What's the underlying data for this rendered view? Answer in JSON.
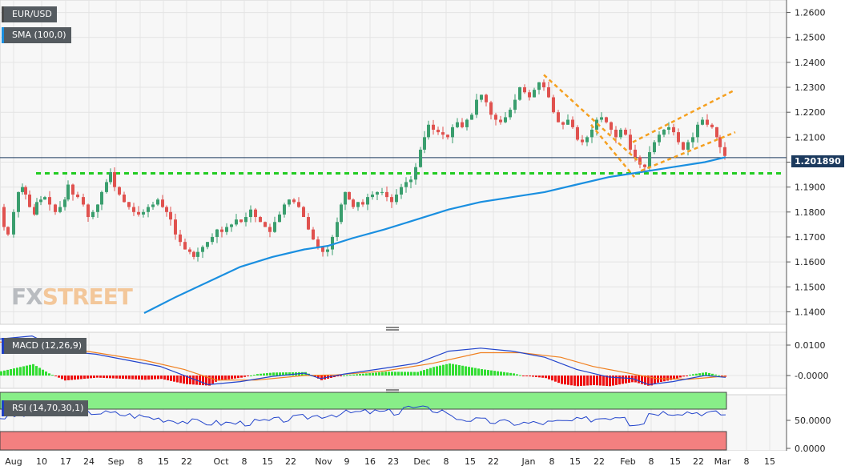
{
  "chart_data": {
    "type": "candlestick",
    "symbol": "EUR/USD",
    "indicator_sma": "SMA (100,0)",
    "indicator_macd": "MACD (12,26,9)",
    "indicator_rsi": "RSI (14,70,30,1)",
    "last_price": "1.201890",
    "price_axis": {
      "ylim": [
        1.135,
        1.265
      ],
      "ticks": [
        "1.2600",
        "1.2500",
        "1.2400",
        "1.2300",
        "1.2200",
        "1.2100",
        "1.2000",
        "1.1900",
        "1.1800",
        "1.1700",
        "1.1600",
        "1.1500",
        "1.1400"
      ]
    },
    "macd_axis": {
      "ticks": [
        "0.0100",
        "-0.0000"
      ]
    },
    "rsi_axis": {
      "ticks": [
        "50.0000",
        "0.0000"
      ]
    },
    "x_ticks": [
      "Aug",
      "10",
      "17",
      "24",
      "Sep",
      "8",
      "15",
      "22",
      "Oct",
      "8",
      "15",
      "22",
      "Nov",
      "9",
      "16",
      "23",
      "Dec",
      "8",
      "15",
      "22",
      "Jan",
      "8",
      "15",
      "22",
      "Feb",
      "8",
      "15",
      "22",
      "Mar",
      "8",
      "15"
    ],
    "support_level": 1.1955,
    "resistance_level": 1.2018,
    "price_path": [
      [
        0,
        1.182
      ],
      [
        6,
        1.174
      ],
      [
        11,
        1.171
      ],
      [
        18,
        1.18
      ],
      [
        24,
        1.188
      ],
      [
        29,
        1.19
      ],
      [
        33,
        1.187
      ],
      [
        38,
        1.182
      ],
      [
        44,
        1.179
      ],
      [
        47,
        1.184
      ],
      [
        52,
        1.185
      ],
      [
        57,
        1.186
      ],
      [
        63,
        1.183
      ],
      [
        70,
        1.18
      ],
      [
        76,
        1.182
      ],
      [
        82,
        1.185
      ],
      [
        86,
        1.191
      ],
      [
        92,
        1.187
      ],
      [
        98,
        1.186
      ],
      [
        105,
        1.183
      ],
      [
        111,
        1.178
      ],
      [
        117,
        1.18
      ],
      [
        123,
        1.183
      ],
      [
        128,
        1.188
      ],
      [
        134,
        1.192
      ],
      [
        139,
        1.196
      ],
      [
        144,
        1.19
      ],
      [
        150,
        1.187
      ],
      [
        156,
        1.184
      ],
      [
        162,
        1.182
      ],
      [
        168,
        1.18
      ],
      [
        174,
        1.179
      ],
      [
        180,
        1.18
      ],
      [
        186,
        1.182
      ],
      [
        192,
        1.183
      ],
      [
        198,
        1.185
      ],
      [
        204,
        1.182
      ],
      [
        209,
        1.18
      ],
      [
        214,
        1.177
      ],
      [
        220,
        1.171
      ],
      [
        226,
        1.168
      ],
      [
        232,
        1.165
      ],
      [
        238,
        1.164
      ],
      [
        243,
        1.162
      ],
      [
        248,
        1.164
      ],
      [
        254,
        1.166
      ],
      [
        260,
        1.168
      ],
      [
        266,
        1.17
      ],
      [
        272,
        1.173
      ],
      [
        278,
        1.172
      ],
      [
        284,
        1.174
      ],
      [
        290,
        1.175
      ],
      [
        296,
        1.177
      ],
      [
        302,
        1.176
      ],
      [
        308,
        1.178
      ],
      [
        314,
        1.181
      ],
      [
        320,
        1.178
      ],
      [
        326,
        1.176
      ],
      [
        332,
        1.174
      ],
      [
        338,
        1.172
      ],
      [
        344,
        1.176
      ],
      [
        350,
        1.179
      ],
      [
        356,
        1.183
      ],
      [
        362,
        1.185
      ],
      [
        368,
        1.184
      ],
      [
        374,
        1.182
      ],
      [
        380,
        1.178
      ],
      [
        386,
        1.173
      ],
      [
        392,
        1.169
      ],
      [
        398,
        1.166
      ],
      [
        404,
        1.164
      ],
      [
        410,
        1.165
      ],
      [
        416,
        1.17
      ],
      [
        422,
        1.176
      ],
      [
        427,
        1.183
      ],
      [
        432,
        1.188
      ],
      [
        437,
        1.185
      ],
      [
        442,
        1.182
      ],
      [
        448,
        1.184
      ],
      [
        454,
        1.183
      ],
      [
        460,
        1.186
      ],
      [
        466,
        1.187
      ],
      [
        472,
        1.188
      ],
      [
        478,
        1.188
      ],
      [
        484,
        1.186
      ],
      [
        490,
        1.184
      ],
      [
        496,
        1.187
      ],
      [
        502,
        1.19
      ],
      [
        508,
        1.192
      ],
      [
        514,
        1.193
      ],
      [
        520,
        1.198
      ],
      [
        526,
        1.205
      ],
      [
        531,
        1.21
      ],
      [
        536,
        1.215
      ],
      [
        542,
        1.213
      ],
      [
        548,
        1.212
      ],
      [
        554,
        1.211
      ],
      [
        560,
        1.21
      ],
      [
        566,
        1.214
      ],
      [
        572,
        1.216
      ],
      [
        578,
        1.214
      ],
      [
        584,
        1.217
      ],
      [
        590,
        1.219
      ],
      [
        596,
        1.225
      ],
      [
        602,
        1.227
      ],
      [
        608,
        1.224
      ],
      [
        614,
        1.219
      ],
      [
        620,
        1.217
      ],
      [
        626,
        1.216
      ],
      [
        632,
        1.218
      ],
      [
        638,
        1.221
      ],
      [
        644,
        1.225
      ],
      [
        650,
        1.23
      ],
      [
        656,
        1.228
      ],
      [
        662,
        1.226
      ],
      [
        668,
        1.229
      ],
      [
        674,
        1.232
      ],
      [
        680,
        1.23
      ],
      [
        686,
        1.226
      ],
      [
        692,
        1.22
      ],
      [
        698,
        1.216
      ],
      [
        704,
        1.215
      ],
      [
        710,
        1.217
      ],
      [
        716,
        1.214
      ],
      [
        722,
        1.209
      ],
      [
        728,
        1.208
      ],
      [
        734,
        1.21
      ],
      [
        740,
        1.213
      ],
      [
        746,
        1.217
      ],
      [
        752,
        1.218
      ],
      [
        758,
        1.216
      ],
      [
        764,
        1.213
      ],
      [
        770,
        1.21
      ],
      [
        776,
        1.213
      ],
      [
        782,
        1.211
      ],
      [
        788,
        1.205
      ],
      [
        794,
        1.202
      ],
      [
        800,
        1.199
      ],
      [
        806,
        1.198
      ],
      [
        812,
        1.204
      ],
      [
        818,
        1.208
      ],
      [
        824,
        1.211
      ],
      [
        830,
        1.213
      ],
      [
        836,
        1.214
      ],
      [
        842,
        1.212
      ],
      [
        848,
        1.208
      ],
      [
        854,
        1.205
      ],
      [
        860,
        1.208
      ],
      [
        866,
        1.21
      ],
      [
        872,
        1.215
      ],
      [
        878,
        1.217
      ],
      [
        884,
        1.215
      ],
      [
        890,
        1.214
      ],
      [
        896,
        1.21
      ],
      [
        900,
        1.206
      ],
      [
        906,
        1.2025
      ]
    ],
    "sma_path": [
      [
        180,
        1.1395
      ],
      [
        220,
        1.146
      ],
      [
        260,
        1.152
      ],
      [
        300,
        1.158
      ],
      [
        340,
        1.162
      ],
      [
        380,
        1.165
      ],
      [
        410,
        1.1665
      ],
      [
        440,
        1.1695
      ],
      [
        480,
        1.173
      ],
      [
        520,
        1.177
      ],
      [
        560,
        1.181
      ],
      [
        600,
        1.184
      ],
      [
        640,
        1.186
      ],
      [
        680,
        1.188
      ],
      [
        720,
        1.191
      ],
      [
        760,
        1.194
      ],
      [
        800,
        1.196
      ],
      [
        840,
        1.198
      ],
      [
        880,
        1.2
      ],
      [
        906,
        1.202
      ]
    ]
  }
}
